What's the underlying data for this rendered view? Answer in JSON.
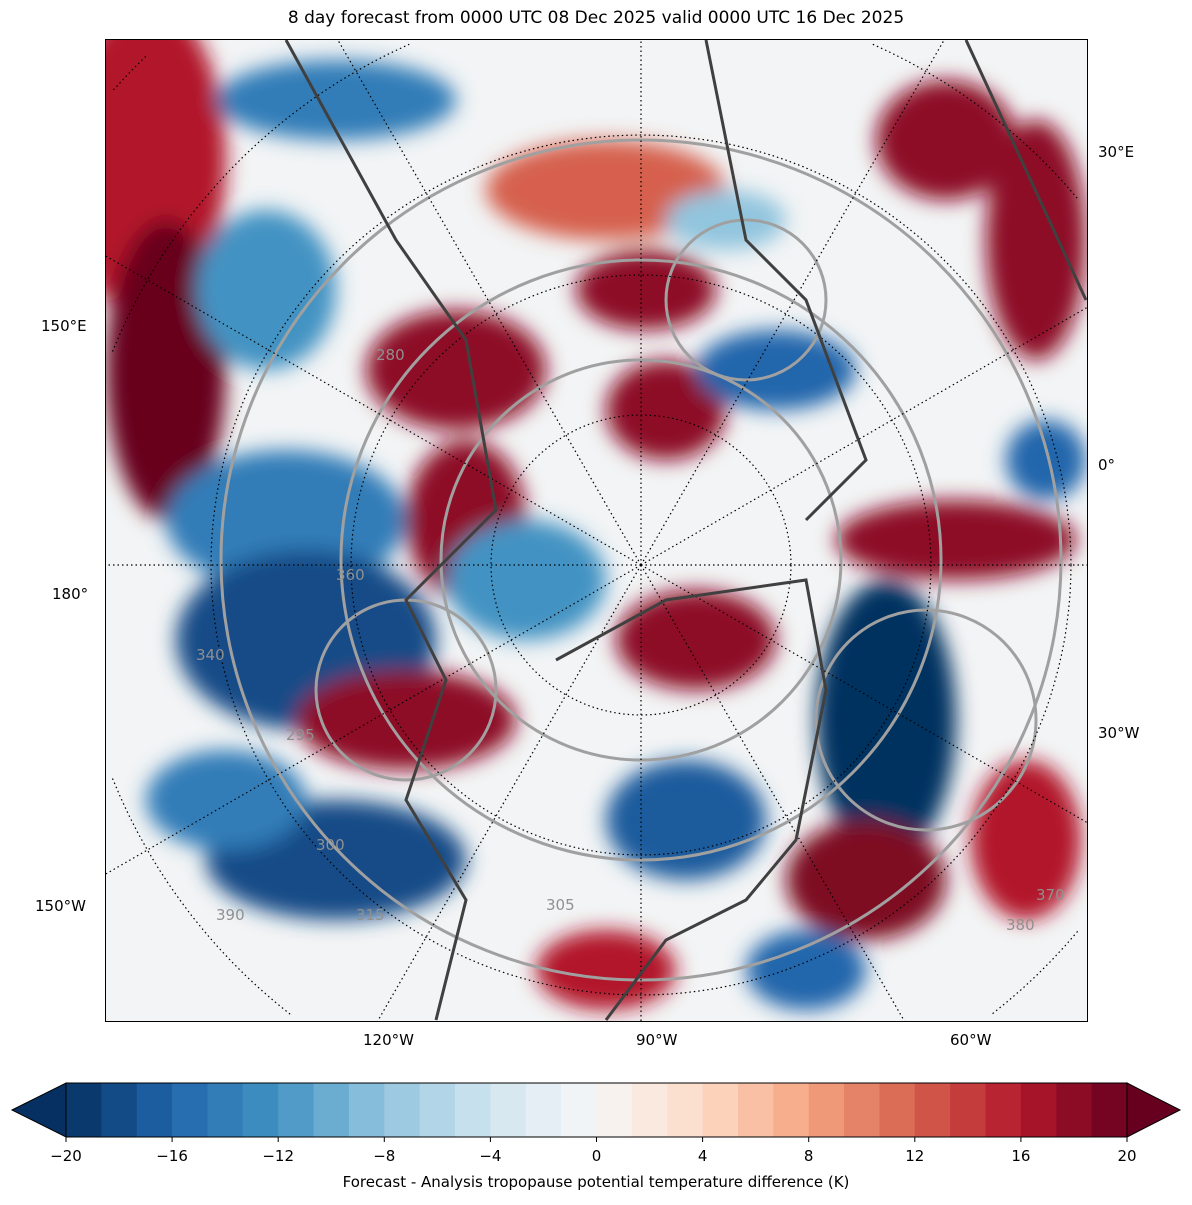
{
  "title": "8 day forecast from 0000 UTC 08 Dec 2025 valid 0000 UTC 16 Dec 2025",
  "lon_labels_left": [
    "150°E",
    "180°",
    "150°W"
  ],
  "lon_labels_right": [
    "30°E",
    "0°",
    "30°W"
  ],
  "lon_labels_bottom": [
    "120°W",
    "90°W",
    "60°W"
  ],
  "contour_labels": [
    "280",
    "295",
    "300",
    "305",
    "315",
    "340",
    "360",
    "370",
    "380",
    "390"
  ],
  "colorbar": {
    "min": -20,
    "max": 20,
    "levels": 30,
    "extend": "both",
    "ticks": [
      "−20",
      "−16",
      "−12",
      "−8",
      "−4",
      "0",
      "4",
      "8",
      "12",
      "16",
      "20"
    ],
    "label": "Forecast - Analysis tropopause potential temperature difference (K)",
    "colormap": "RdBu_r",
    "colors": [
      "#053061",
      "#2166ac",
      "#4393c3",
      "#92c5de",
      "#d1e5f0",
      "#f7f7f7",
      "#fddbc7",
      "#f4a582",
      "#d6604d",
      "#b2182b",
      "#67001f"
    ]
  }
}
